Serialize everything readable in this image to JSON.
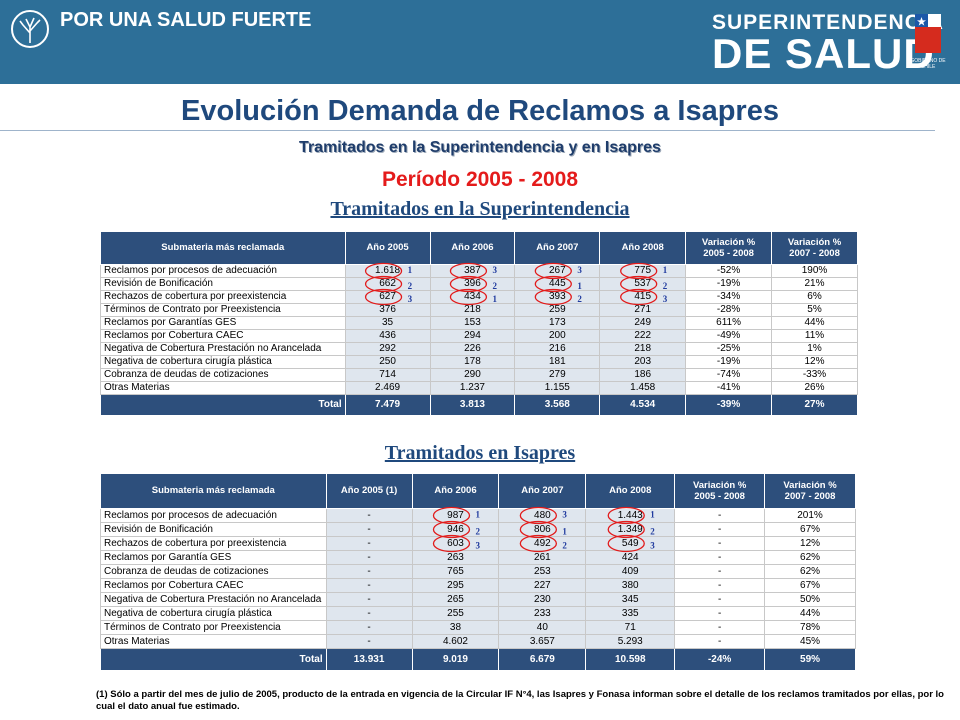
{
  "header": {
    "slogan": "POR UNA SALUD FUERTE",
    "brand_top": "SUPERINTENDENCIA",
    "brand_bottom": "DE SALUD",
    "gov_label": "GOBIERNO DE CHILE",
    "background": "#2d6f98"
  },
  "title": "Evolución Demanda de Reclamos a Isapres",
  "subtitle": "Tramitados en la Superintendencia y en Isapres",
  "period": "Período 2005 - 2008",
  "colors": {
    "title": "#1f497d",
    "period": "#e41b1b",
    "table_header": "#2d4f7c",
    "highlight_cell": "#dfe6ee",
    "ring": "#e21b1b",
    "rank": "#1f3a9e"
  },
  "table1": {
    "section_title": "Tramitados en la Superintendencia",
    "headers": [
      "Submateria más reclamada",
      "Año 2005",
      "Año 2006",
      "Año 2007",
      "Año 2008",
      "Variación %\n2005 - 2008",
      "Variación %\n2007 - 2008"
    ],
    "rows": [
      {
        "label": "Reclamos por procesos de adecuación",
        "y2005": "1.618",
        "y2006": "387",
        "y2007": "267",
        "y2008": "775",
        "v1": "-52%",
        "v2": "190%"
      },
      {
        "label": "Revisión de Bonificación",
        "y2005": "662",
        "y2006": "396",
        "y2007": "445",
        "y2008": "537",
        "v1": "-19%",
        "v2": "21%"
      },
      {
        "label": "Rechazos de cobertura por preexistencia",
        "y2005": "627",
        "y2006": "434",
        "y2007": "393",
        "y2008": "415",
        "v1": "-34%",
        "v2": "6%"
      },
      {
        "label": "Términos de Contrato por Preexistencia",
        "y2005": "376",
        "y2006": "218",
        "y2007": "259",
        "y2008": "271",
        "v1": "-28%",
        "v2": "5%"
      },
      {
        "label": "Reclamos por Garantías GES",
        "y2005": "35",
        "y2006": "153",
        "y2007": "173",
        "y2008": "249",
        "v1": "611%",
        "v2": "44%"
      },
      {
        "label": "Reclamos por Cobertura CAEC",
        "y2005": "436",
        "y2006": "294",
        "y2007": "200",
        "y2008": "222",
        "v1": "-49%",
        "v2": "11%"
      },
      {
        "label": "Negativa de Cobertura Prestación no Arancelada",
        "y2005": "292",
        "y2006": "226",
        "y2007": "216",
        "y2008": "218",
        "v1": "-25%",
        "v2": "1%"
      },
      {
        "label": "Negativa de cobertura cirugía plástica",
        "y2005": "250",
        "y2006": "178",
        "y2007": "181",
        "y2008": "203",
        "v1": "-19%",
        "v2": "12%"
      },
      {
        "label": "Cobranza de deudas de cotizaciones",
        "y2005": "714",
        "y2006": "290",
        "y2007": "279",
        "y2008": "186",
        "v1": "-74%",
        "v2": "-33%"
      },
      {
        "label": "Otras Materias",
        "y2005": "2.469",
        "y2006": "1.237",
        "y2007": "1.155",
        "y2008": "1.458",
        "v1": "-41%",
        "v2": "26%"
      }
    ],
    "total": {
      "label": "Total",
      "y2005": "7.479",
      "y2006": "3.813",
      "y2007": "3.568",
      "y2008": "4.534",
      "v1": "-39%",
      "v2": "27%"
    },
    "ranks": {
      "y2005": [
        "1",
        "2",
        "3"
      ],
      "y2006": [
        "3",
        "2",
        "1"
      ],
      "y2007": [
        "3",
        "1",
        "2"
      ],
      "y2008": [
        "1",
        "2",
        "3"
      ]
    }
  },
  "table2": {
    "section_title": "Tramitados en Isapres",
    "headers": [
      "Submateria más reclamada",
      "Año 2005 (1)",
      "Año 2006",
      "Año 2007",
      "Año 2008",
      "Variación %\n2005 - 2008",
      "Variación %\n2007 - 2008"
    ],
    "rows": [
      {
        "label": "Reclamos por procesos de adecuación",
        "y2005": "-",
        "y2006": "987",
        "y2007": "480",
        "y2008": "1.443",
        "v1": "-",
        "v2": "201%"
      },
      {
        "label": "Revisión de Bonificación",
        "y2005": "-",
        "y2006": "946",
        "y2007": "806",
        "y2008": "1.349",
        "v1": "-",
        "v2": "67%"
      },
      {
        "label": "Rechazos de cobertura por preexistencia",
        "y2005": "-",
        "y2006": "603",
        "y2007": "492",
        "y2008": "549",
        "v1": "-",
        "v2": "12%"
      },
      {
        "label": "Reclamos por Garantía GES",
        "y2005": "-",
        "y2006": "263",
        "y2007": "261",
        "y2008": "424",
        "v1": "-",
        "v2": "62%"
      },
      {
        "label": "Cobranza de deudas de cotizaciones",
        "y2005": "-",
        "y2006": "765",
        "y2007": "253",
        "y2008": "409",
        "v1": "-",
        "v2": "62%"
      },
      {
        "label": "Reclamos por Cobertura CAEC",
        "y2005": "-",
        "y2006": "295",
        "y2007": "227",
        "y2008": "380",
        "v1": "-",
        "v2": "67%"
      },
      {
        "label": "Negativa de Cobertura Prestación no Arancelada",
        "y2005": "-",
        "y2006": "265",
        "y2007": "230",
        "y2008": "345",
        "v1": "-",
        "v2": "50%"
      },
      {
        "label": "Negativa de cobertura cirugía plástica",
        "y2005": "-",
        "y2006": "255",
        "y2007": "233",
        "y2008": "335",
        "v1": "-",
        "v2": "44%"
      },
      {
        "label": "Términos de Contrato por Preexistencia",
        "y2005": "-",
        "y2006": "38",
        "y2007": "40",
        "y2008": "71",
        "v1": "-",
        "v2": "78%"
      },
      {
        "label": "Otras Materias",
        "y2005": "-",
        "y2006": "4.602",
        "y2007": "3.657",
        "y2008": "5.293",
        "v1": "-",
        "v2": "45%"
      }
    ],
    "total": {
      "label": "Total",
      "y2005": "13.931",
      "y2006": "9.019",
      "y2007": "6.679",
      "y2008": "10.598",
      "v1": "-24%",
      "v2": "59%"
    },
    "ranks": {
      "y2006": [
        "1",
        "2",
        "3"
      ],
      "y2007": [
        "3",
        "1",
        "2"
      ],
      "y2008": [
        "1",
        "2",
        "3"
      ]
    }
  },
  "footnote": "(1) Sólo a partir del mes de julio de 2005, producto de la entrada en vigencia de la Circular IF N°4, las Isapres y Fonasa informan sobre el detalle de los reclamos tramitados por ellas, por lo cual el dato anual fue estimado."
}
